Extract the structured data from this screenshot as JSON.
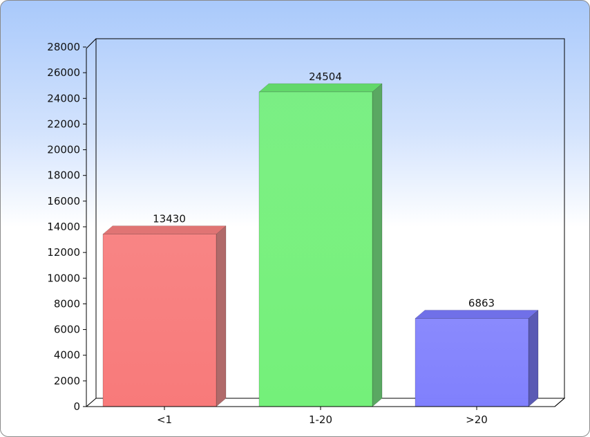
{
  "chart_data": {
    "type": "bar",
    "title": "",
    "xlabel": "",
    "ylabel": "",
    "categories": [
      "<1",
      "1-20",
      ">20"
    ],
    "values": [
      13430,
      24504,
      6863
    ],
    "ylim": [
      0,
      28000
    ],
    "ytick_step": 2000,
    "grid": false,
    "legend": "none",
    "bar_colors": [
      "#f87a7a",
      "#74f07a",
      "#8080fd"
    ],
    "bar_side_colors": [
      "#b06a6a",
      "#5aa862",
      "#5a5ab4"
    ],
    "bar_top_colors": [
      "#e07474",
      "#62d86a",
      "#7070e8"
    ]
  }
}
